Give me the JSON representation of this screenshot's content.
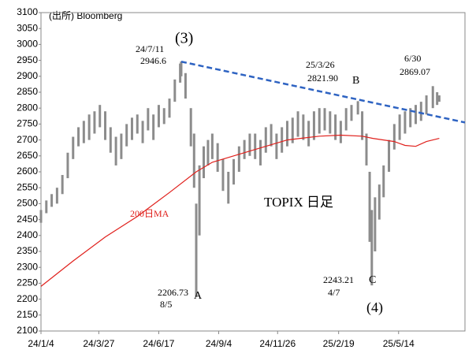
{
  "chart_data": {
    "type": "range-bar",
    "source": "(出所) Bloomberg",
    "ylim": [
      2100,
      3100
    ],
    "yticks": [
      2100,
      2150,
      2200,
      2250,
      2300,
      2350,
      2400,
      2450,
      2500,
      2550,
      2600,
      2650,
      2700,
      2750,
      2800,
      2850,
      2900,
      2950,
      3000,
      3050,
      3100
    ],
    "xlim": [
      0,
      396
    ],
    "xticks": [
      {
        "value": 0,
        "label": "24/1/4"
      },
      {
        "value": 54,
        "label": "24/3/27"
      },
      {
        "value": 110,
        "label": "24/6/17"
      },
      {
        "value": 166,
        "label": "24/9/4"
      },
      {
        "value": 221,
        "label": "24/11/26"
      },
      {
        "value": 278,
        "label": "25/2/19"
      },
      {
        "value": 334,
        "label": "25/5/14"
      }
    ],
    "series": [
      {
        "name": "TOPIX 日足",
        "color": "#8c8c8c",
        "x": [
          0,
          5,
          10,
          15,
          20,
          25,
          30,
          35,
          40,
          45,
          50,
          55,
          60,
          65,
          70,
          75,
          80,
          85,
          90,
          95,
          100,
          105,
          110,
          115,
          120,
          125,
          130,
          131,
          135,
          140,
          143,
          145,
          148,
          152,
          156,
          160,
          165,
          170,
          175,
          180,
          185,
          190,
          195,
          200,
          205,
          210,
          215,
          220,
          225,
          230,
          235,
          240,
          245,
          250,
          255,
          260,
          265,
          270,
          275,
          280,
          285,
          290,
          296,
          300,
          304,
          307,
          309,
          312,
          316,
          320,
          325,
          330,
          335,
          340,
          345,
          350,
          355,
          360,
          366,
          370,
          372
        ],
        "low": [
          2440,
          2470,
          2490,
          2500,
          2530,
          2580,
          2640,
          2680,
          2690,
          2700,
          2720,
          2740,
          2700,
          2660,
          2620,
          2640,
          2680,
          2700,
          2720,
          2690,
          2730,
          2700,
          2740,
          2750,
          2770,
          2820,
          2880,
          2900,
          2830,
          2680,
          2550,
          2206.73,
          2400,
          2580,
          2620,
          2640,
          2600,
          2540,
          2500,
          2560,
          2600,
          2640,
          2650,
          2640,
          2620,
          2660,
          2680,
          2640,
          2660,
          2680,
          2690,
          2710,
          2700,
          2680,
          2700,
          2720,
          2730,
          2720,
          2700,
          2690,
          2730,
          2760,
          2780,
          2700,
          2620,
          2380,
          2243.21,
          2350,
          2450,
          2520,
          2600,
          2670,
          2700,
          2720,
          2740,
          2750,
          2760,
          2780,
          2800,
          2810,
          2820
        ],
        "high": [
          2480,
          2510,
          2530,
          2550,
          2590,
          2660,
          2710,
          2740,
          2760,
          2780,
          2790,
          2810,
          2790,
          2740,
          2710,
          2720,
          2750,
          2770,
          2780,
          2760,
          2800,
          2780,
          2810,
          2800,
          2830,
          2890,
          2940,
          2946.6,
          2910,
          2800,
          2720,
          2500,
          2620,
          2680,
          2700,
          2720,
          2690,
          2640,
          2600,
          2640,
          2680,
          2700,
          2720,
          2720,
          2700,
          2740,
          2750,
          2720,
          2740,
          2760,
          2770,
          2790,
          2780,
          2760,
          2790,
          2800,
          2800,
          2790,
          2780,
          2760,
          2800,
          2810,
          2821.9,
          2790,
          2720,
          2600,
          2480,
          2520,
          2560,
          2620,
          2700,
          2750,
          2780,
          2790,
          2800,
          2810,
          2820,
          2840,
          2869.07,
          2850,
          2840
        ]
      },
      {
        "name": "200日MA",
        "color": "#e0201c",
        "type": "line",
        "x": [
          0,
          30,
          60,
          90,
          120,
          145,
          160,
          175,
          200,
          230,
          260,
          280,
          300,
          310,
          320,
          330,
          340,
          350,
          360,
          372
        ],
        "values": [
          2240,
          2320,
          2395,
          2460,
          2535,
          2600,
          2630,
          2645,
          2670,
          2700,
          2712,
          2715,
          2712,
          2705,
          2700,
          2695,
          2683,
          2680,
          2695,
          2705
        ]
      }
    ],
    "trendline": {
      "x": [
        131,
        396
      ],
      "values": [
        2946,
        2755
      ],
      "color": "#2e63c2"
    },
    "annotations": [
      {
        "text": "(3)"
      },
      {
        "text": "24/7/11"
      },
      {
        "text": "2946.6"
      },
      {
        "text": "25/3/26"
      },
      {
        "text": "2821.90"
      },
      {
        "text": "B"
      },
      {
        "text": "6/30"
      },
      {
        "text": "2869.07"
      },
      {
        "text": "TOPIX 日足"
      },
      {
        "text": "2206.73"
      },
      {
        "text": "8/5"
      },
      {
        "text": "A"
      },
      {
        "text": "2243.21"
      },
      {
        "text": "4/7"
      },
      {
        "text": "C"
      },
      {
        "text": "(4)"
      }
    ]
  }
}
